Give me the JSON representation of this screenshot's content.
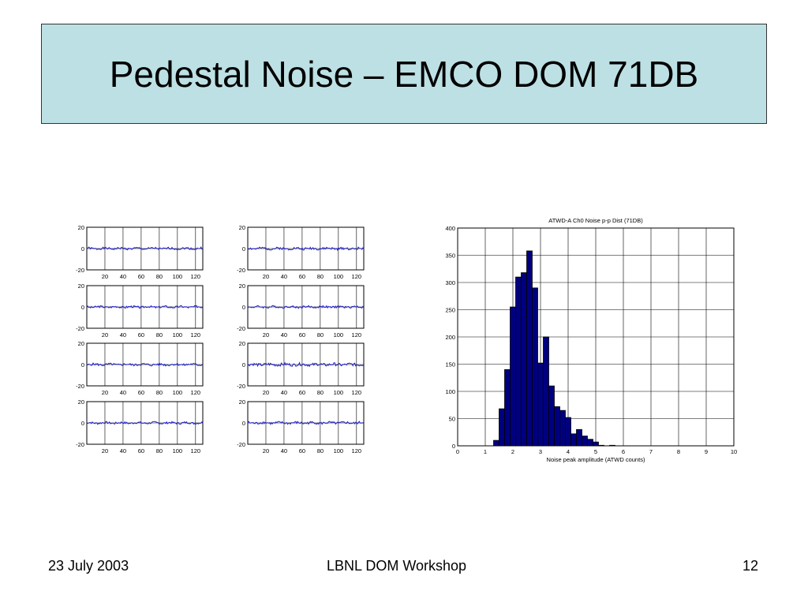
{
  "slide": {
    "title": "Pedestal Noise – EMCO DOM 71DB",
    "footer": {
      "date": "23 July 2003",
      "event": "LBNL DOM Workshop",
      "page": "12"
    }
  },
  "colors": {
    "title_bg": "#bde0e4",
    "trace": "#1f1fcc",
    "bar_fill": "#00007f",
    "bar_edge": "#000000"
  },
  "chart_data": [
    {
      "type": "line",
      "layout": "grid 4x2 small multiples",
      "xlim": [
        0,
        128
      ],
      "ylim": [
        -20,
        20
      ],
      "xticks": [
        20,
        40,
        60,
        80,
        100,
        120
      ],
      "yticks": [
        20,
        0,
        -20
      ],
      "grid": true,
      "panels": [
        {
          "amplitude": 1.0,
          "seed": 1
        },
        {
          "amplitude": 1.2,
          "seed": 2
        },
        {
          "amplitude": 1.0,
          "seed": 3
        },
        {
          "amplitude": 1.0,
          "seed": 4
        },
        {
          "amplitude": 1.1,
          "seed": 5
        },
        {
          "amplitude": 1.4,
          "seed": 6
        },
        {
          "amplitude": 1.0,
          "seed": 7
        },
        {
          "amplitude": 1.2,
          "seed": 8
        }
      ]
    },
    {
      "type": "bar",
      "title": "ATWD-A Ch0 Noise p-p Dist (71DB)",
      "xlabel": "Noise peak amplitude (ATWD counts)",
      "ylabel": "",
      "xlim": [
        0,
        10
      ],
      "ylim": [
        0,
        400
      ],
      "xticks": [
        0,
        1,
        2,
        3,
        4,
        5,
        6,
        7,
        8,
        9,
        10
      ],
      "yticks": [
        0,
        50,
        100,
        150,
        200,
        250,
        300,
        350,
        400
      ],
      "grid": true,
      "bin_width": 0.2,
      "bins_start": [
        1.3,
        1.5,
        1.7,
        1.9,
        2.1,
        2.3,
        2.5,
        2.7,
        2.9,
        3.1,
        3.3,
        3.5,
        3.7,
        3.9,
        4.1,
        4.3,
        4.5,
        4.7,
        4.9,
        5.1,
        5.3,
        5.5
      ],
      "values": [
        10,
        68,
        140,
        255,
        310,
        318,
        358,
        290,
        152,
        200,
        110,
        72,
        65,
        52,
        22,
        30,
        18,
        12,
        7,
        1,
        0,
        1
      ]
    }
  ]
}
